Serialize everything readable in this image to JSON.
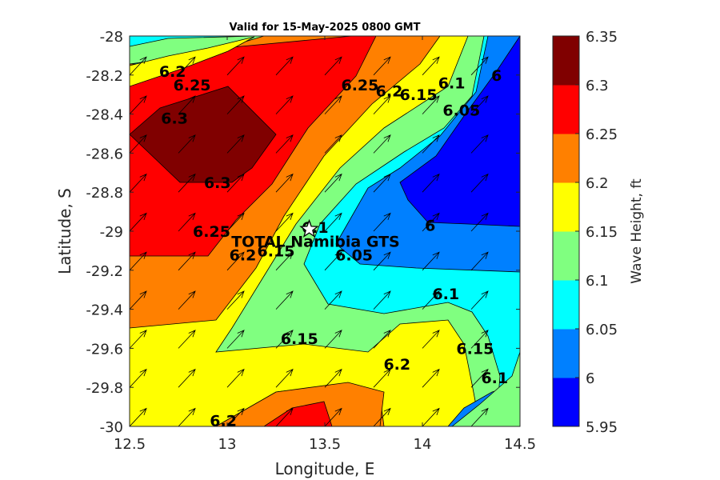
{
  "title": "Valid for 15-May-2025 0800 GMT",
  "chart_data": {
    "type": "contour",
    "title": "Valid for 15-May-2025 0800 GMT",
    "xlabel": "Longitude, E",
    "ylabel": "Latitude, S",
    "xlim": [
      12.5,
      14.5
    ],
    "ylim": [
      -30,
      -28
    ],
    "x_ticks": [
      "12.5",
      "13",
      "13.5",
      "14",
      "14.5"
    ],
    "y_ticks": [
      "-28",
      "-28.2",
      "-28.4",
      "-28.6",
      "-28.8",
      "-29",
      "-29.2",
      "-29.4",
      "-29.6",
      "-29.8",
      "-30"
    ],
    "colorbar": {
      "label": "Wave Height, ft",
      "levels": [
        5.95,
        6.0,
        6.05,
        6.1,
        6.15,
        6.2,
        6.25,
        6.3,
        6.35
      ],
      "tick_labels": [
        "6.35",
        "6.3",
        "6.25",
        "6.2",
        "6.15",
        "6.1",
        "6.05",
        "6",
        "5.95"
      ],
      "colors": [
        "#0000FF",
        "#0080FF",
        "#00FFFF",
        "#80FF80",
        "#FFFF00",
        "#FF8000",
        "#FF0000",
        "#800000"
      ]
    },
    "contour_labels": [
      {
        "text": "6.2",
        "lon": 12.72,
        "lat": -28.18
      },
      {
        "text": "6.25",
        "lon": 12.82,
        "lat": -28.25
      },
      {
        "text": "6.3",
        "lon": 12.73,
        "lat": -28.42
      },
      {
        "text": "6.3",
        "lon": 12.95,
        "lat": -28.75
      },
      {
        "text": "6.25",
        "lon": 12.92,
        "lat": -29.0
      },
      {
        "text": "6.2",
        "lon": 13.08,
        "lat": -29.12
      },
      {
        "text": "6.15",
        "lon": 13.25,
        "lat": -29.1
      },
      {
        "text": "6.1",
        "lon": 13.45,
        "lat": -28.98
      },
      {
        "text": "6.05",
        "lon": 13.65,
        "lat": -29.12
      },
      {
        "text": "6.25",
        "lon": 13.68,
        "lat": -28.25
      },
      {
        "text": "6.2",
        "lon": 13.83,
        "lat": -28.28
      },
      {
        "text": "6.15",
        "lon": 13.98,
        "lat": -28.3
      },
      {
        "text": "6.1",
        "lon": 14.15,
        "lat": -28.24
      },
      {
        "text": "6.05",
        "lon": 14.2,
        "lat": -28.38
      },
      {
        "text": "6",
        "lon": 14.38,
        "lat": -28.2
      },
      {
        "text": "6",
        "lon": 14.04,
        "lat": -28.97
      },
      {
        "text": "6.1",
        "lon": 14.12,
        "lat": -29.32
      },
      {
        "text": "6.15",
        "lon": 13.37,
        "lat": -29.55
      },
      {
        "text": "6.2",
        "lon": 13.87,
        "lat": -29.68
      },
      {
        "text": "6.15",
        "lon": 14.27,
        "lat": -29.6
      },
      {
        "text": "6.1",
        "lon": 14.37,
        "lat": -29.75
      },
      {
        "text": "6.2",
        "lon": 12.98,
        "lat": -29.97
      }
    ],
    "site": {
      "name": "TOTAL Namibia GTS",
      "marker": "star-icon",
      "lon": 13.42,
      "lat": -28.99
    },
    "wave_direction_deg": 60
  }
}
